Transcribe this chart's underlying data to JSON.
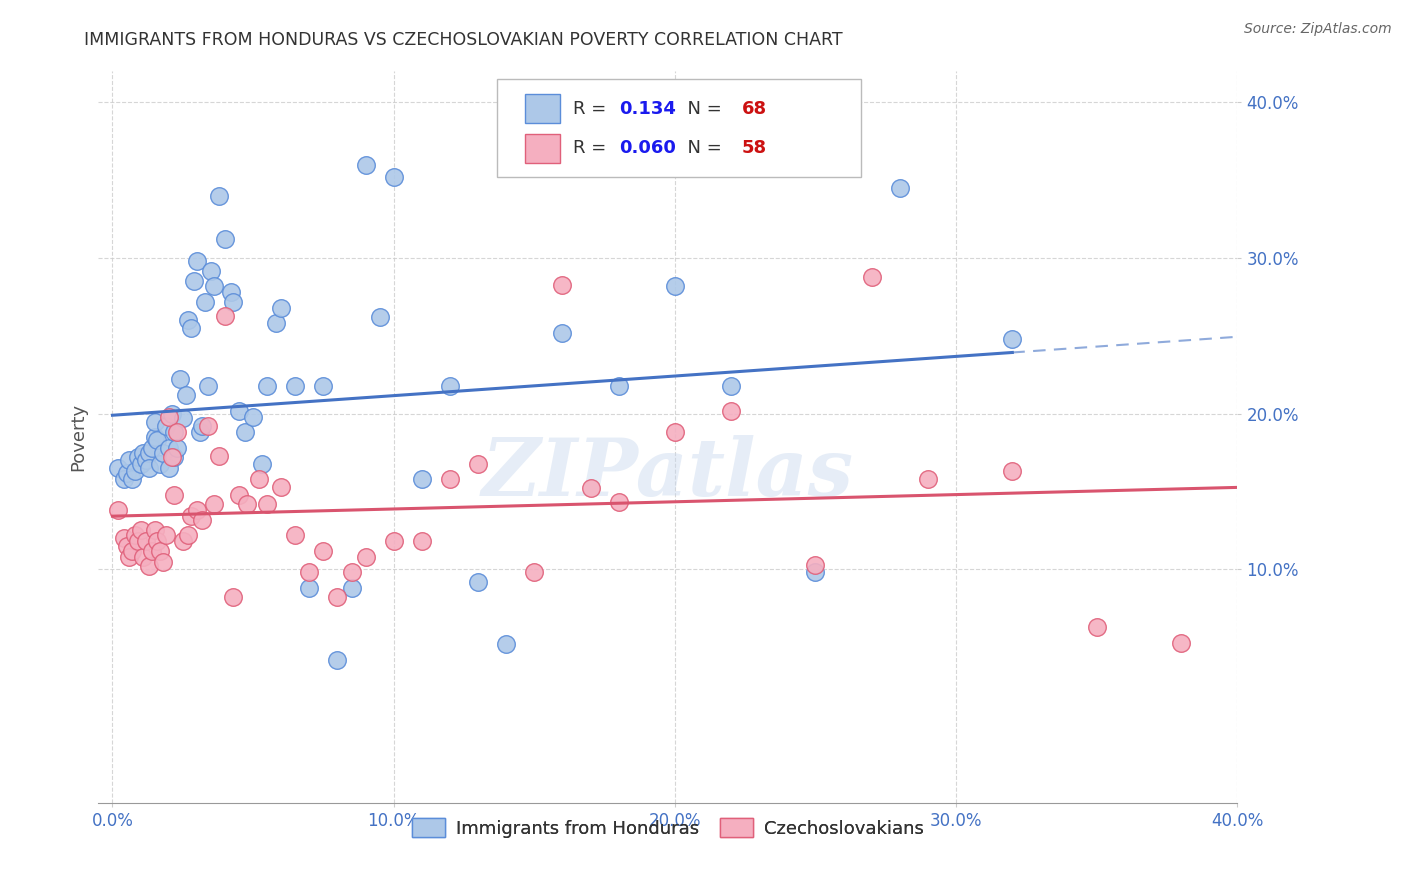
{
  "title": "IMMIGRANTS FROM HONDURAS VS CZECHOSLOVAKIAN POVERTY CORRELATION CHART",
  "source": "Source: ZipAtlas.com",
  "ylabel": "Poverty",
  "xlim": [
    -0.005,
    0.4
  ],
  "ylim": [
    -0.05,
    0.42
  ],
  "xticks": [
    0.0,
    0.1,
    0.2,
    0.3,
    0.4
  ],
  "yticks": [
    0.1,
    0.2,
    0.3,
    0.4
  ],
  "xticklabels": [
    "0.0%",
    "10.0%",
    "20.0%",
    "30.0%",
    "40.0%"
  ],
  "yticklabels": [
    "10.0%",
    "20.0%",
    "30.0%",
    "40.0%"
  ],
  "legend_entries": [
    "Immigrants from Honduras",
    "Czechoslovakians"
  ],
  "blue_color": "#adc8e8",
  "pink_color": "#f5afc0",
  "blue_edge_color": "#5b8dd9",
  "pink_edge_color": "#e0607a",
  "blue_line_color": "#4472c4",
  "pink_line_color": "#d9546e",
  "blue_R": 0.134,
  "blue_N": 68,
  "pink_R": 0.06,
  "pink_N": 58,
  "watermark": "ZIPatlas",
  "tick_color": "#4472c4",
  "blue_scatter_x": [
    0.002,
    0.004,
    0.005,
    0.006,
    0.007,
    0.008,
    0.009,
    0.01,
    0.011,
    0.012,
    0.013,
    0.013,
    0.014,
    0.015,
    0.015,
    0.016,
    0.017,
    0.018,
    0.019,
    0.02,
    0.02,
    0.021,
    0.022,
    0.022,
    0.023,
    0.024,
    0.025,
    0.026,
    0.027,
    0.028,
    0.029,
    0.03,
    0.031,
    0.032,
    0.033,
    0.034,
    0.035,
    0.036,
    0.038,
    0.04,
    0.042,
    0.043,
    0.045,
    0.047,
    0.05,
    0.053,
    0.055,
    0.058,
    0.06,
    0.065,
    0.07,
    0.075,
    0.08,
    0.085,
    0.09,
    0.095,
    0.1,
    0.11,
    0.12,
    0.13,
    0.14,
    0.16,
    0.18,
    0.2,
    0.22,
    0.25,
    0.28,
    0.32
  ],
  "blue_scatter_y": [
    0.165,
    0.158,
    0.162,
    0.17,
    0.158,
    0.163,
    0.172,
    0.168,
    0.175,
    0.17,
    0.175,
    0.165,
    0.178,
    0.185,
    0.195,
    0.183,
    0.168,
    0.175,
    0.192,
    0.178,
    0.165,
    0.2,
    0.172,
    0.188,
    0.178,
    0.222,
    0.197,
    0.212,
    0.26,
    0.255,
    0.285,
    0.298,
    0.188,
    0.192,
    0.272,
    0.218,
    0.292,
    0.282,
    0.34,
    0.312,
    0.278,
    0.272,
    0.202,
    0.188,
    0.198,
    0.168,
    0.218,
    0.258,
    0.268,
    0.218,
    0.088,
    0.218,
    0.042,
    0.088,
    0.36,
    0.262,
    0.352,
    0.158,
    0.218,
    0.092,
    0.052,
    0.252,
    0.218,
    0.282,
    0.218,
    0.098,
    0.345,
    0.248
  ],
  "pink_scatter_x": [
    0.002,
    0.004,
    0.005,
    0.006,
    0.007,
    0.008,
    0.009,
    0.01,
    0.011,
    0.012,
    0.013,
    0.014,
    0.015,
    0.016,
    0.017,
    0.018,
    0.019,
    0.02,
    0.021,
    0.022,
    0.023,
    0.025,
    0.027,
    0.028,
    0.03,
    0.032,
    0.034,
    0.036,
    0.038,
    0.04,
    0.043,
    0.045,
    0.048,
    0.052,
    0.055,
    0.06,
    0.065,
    0.07,
    0.075,
    0.08,
    0.085,
    0.09,
    0.1,
    0.11,
    0.12,
    0.13,
    0.15,
    0.16,
    0.17,
    0.18,
    0.2,
    0.22,
    0.25,
    0.27,
    0.29,
    0.32,
    0.35,
    0.38
  ],
  "pink_scatter_y": [
    0.138,
    0.12,
    0.115,
    0.108,
    0.112,
    0.122,
    0.118,
    0.125,
    0.108,
    0.118,
    0.102,
    0.112,
    0.125,
    0.118,
    0.112,
    0.105,
    0.122,
    0.198,
    0.172,
    0.148,
    0.188,
    0.118,
    0.122,
    0.134,
    0.138,
    0.132,
    0.192,
    0.142,
    0.173,
    0.263,
    0.082,
    0.148,
    0.142,
    0.158,
    0.142,
    0.153,
    0.122,
    0.098,
    0.112,
    0.082,
    0.098,
    0.108,
    0.118,
    0.118,
    0.158,
    0.168,
    0.098,
    0.283,
    0.152,
    0.143,
    0.188,
    0.202,
    0.103,
    0.288,
    0.158,
    0.163,
    0.063,
    0.053
  ]
}
